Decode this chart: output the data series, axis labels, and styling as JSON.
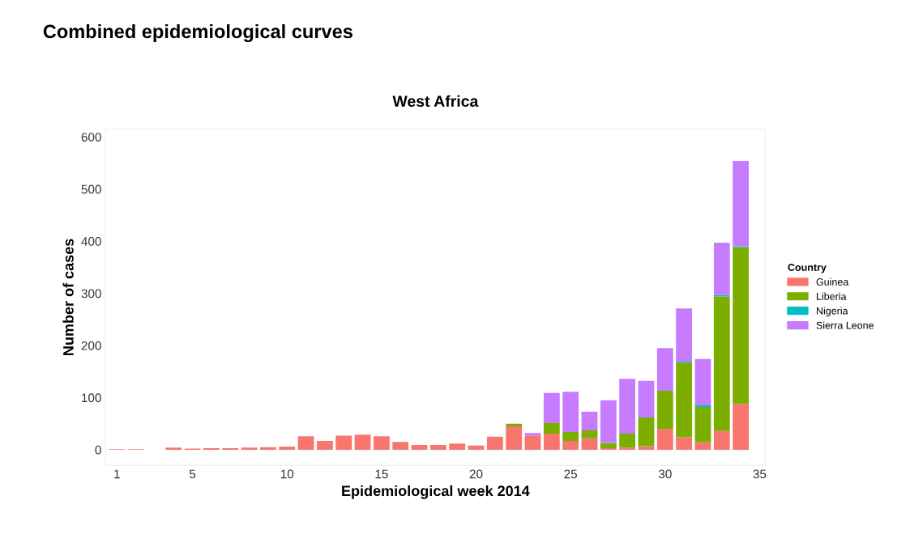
{
  "chart_data": {
    "type": "bar",
    "stacked": true,
    "title": "Combined epidemiological curves",
    "subtitle": "West Africa",
    "xlabel": "Epidemiological week 2014",
    "ylabel": "Number of cases",
    "legend_title": "Country",
    "legend": "right",
    "grid": false,
    "x": [
      1,
      2,
      3,
      4,
      5,
      6,
      7,
      8,
      9,
      10,
      11,
      12,
      13,
      14,
      15,
      16,
      17,
      18,
      19,
      20,
      21,
      22,
      23,
      24,
      25,
      26,
      27,
      28,
      29,
      30,
      31,
      32,
      33,
      34
    ],
    "series": [
      {
        "name": "Guinea",
        "color": "#f8766d",
        "values": [
          1,
          1,
          0,
          4,
          2,
          3,
          3,
          4,
          5,
          6,
          26,
          17,
          27,
          29,
          26,
          15,
          9,
          9,
          12,
          8,
          25,
          45,
          27,
          31,
          17,
          22,
          3,
          4,
          7,
          40,
          24,
          14,
          36,
          88
        ]
      },
      {
        "name": "Liberia",
        "color": "#7cae00",
        "values": [
          0,
          0,
          0,
          0,
          0,
          0,
          0,
          0,
          0,
          0,
          0,
          0,
          0,
          0,
          0,
          0,
          0,
          0,
          0,
          0,
          0,
          5,
          0,
          20,
          17,
          15,
          10,
          27,
          55,
          73,
          143,
          68,
          258,
          300
        ]
      },
      {
        "name": "Nigeria",
        "color": "#00bfc4",
        "values": [
          0,
          0,
          0,
          0,
          0,
          0,
          0,
          0,
          0,
          0,
          0,
          0,
          0,
          0,
          0,
          0,
          0,
          0,
          0,
          0,
          0,
          0,
          0,
          0,
          0,
          0,
          0,
          0,
          0,
          0,
          2,
          3,
          3,
          2
        ]
      },
      {
        "name": "Sierra Leone",
        "color": "#c77cff",
        "values": [
          0,
          0,
          0,
          0,
          0,
          0,
          0,
          0,
          0,
          0,
          0,
          0,
          0,
          0,
          0,
          0,
          0,
          0,
          0,
          0,
          0,
          0,
          5,
          58,
          77,
          36,
          82,
          105,
          70,
          82,
          102,
          89,
          100,
          164
        ]
      }
    ],
    "xlim": [
      0.4,
      35.3
    ],
    "xticks": [
      1,
      5,
      10,
      15,
      20,
      25,
      30,
      35
    ],
    "ylim": [
      -30,
      615
    ],
    "yticks": [
      0,
      100,
      200,
      300,
      400,
      500,
      600
    ]
  }
}
